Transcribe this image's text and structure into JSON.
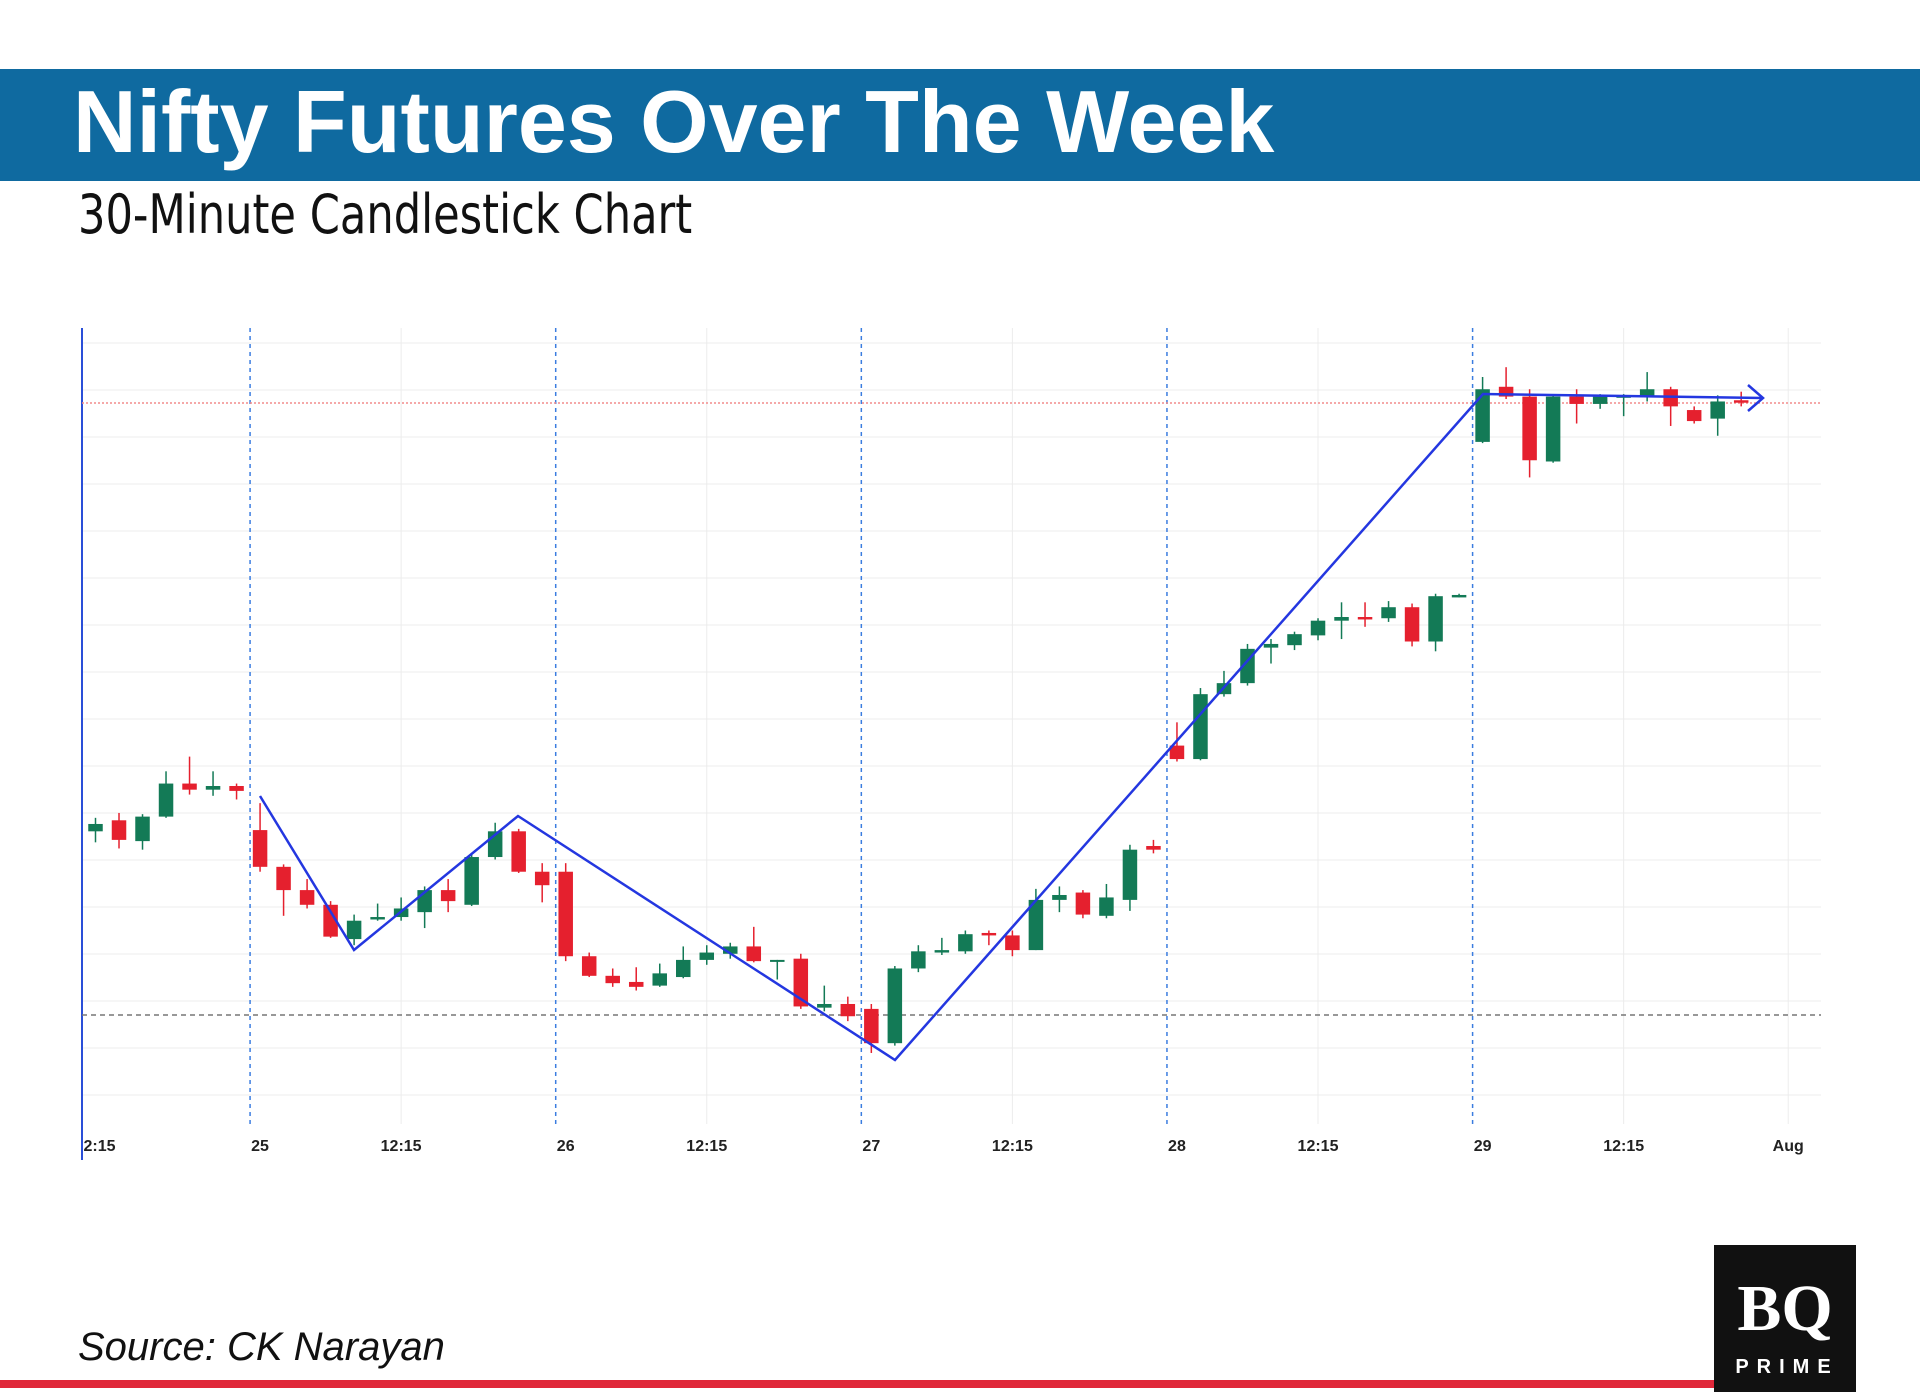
{
  "header": {
    "title": "Nifty Futures Over The Week",
    "subtitle": "30-Minute Candlestick Chart"
  },
  "chart_data": {
    "type": "candlestick",
    "categories": [
      "2:15",
      null,
      null,
      null,
      null,
      null,
      null,
      "25",
      null,
      null,
      null,
      null,
      null,
      "12:15",
      null,
      null,
      null,
      null,
      null,
      null,
      "26",
      null,
      null,
      null,
      null,
      null,
      "12:15",
      null,
      null,
      null,
      null,
      null,
      null,
      "27",
      null,
      null,
      null,
      null,
      null,
      "12:15",
      null,
      null,
      null,
      null,
      null,
      null,
      "28",
      null,
      null,
      null,
      null,
      null,
      "12:15",
      null,
      null,
      null,
      null,
      null,
      null,
      "29",
      null,
      null,
      null,
      null,
      null,
      "12:15",
      null,
      null,
      null,
      null,
      null,
      null,
      "Aug"
    ],
    "open": [
      239,
      248,
      231,
      251,
      278,
      273,
      276,
      240,
      210,
      191,
      179,
      151,
      167,
      169,
      173,
      191,
      179,
      218,
      239,
      206,
      206,
      137,
      121,
      116,
      113,
      120,
      134,
      139,
      145,
      133,
      135,
      95,
      98,
      94,
      66,
      127,
      140,
      141,
      156,
      154,
      142,
      183,
      189,
      170,
      183,
      227,
      309,
      298,
      351,
      360,
      389,
      391,
      399,
      411,
      414,
      413,
      422,
      394,
      430,
      557,
      602,
      594,
      541,
      594,
      588,
      593,
      594,
      600,
      583,
      576,
      591,
      null,
      null
    ],
    "high": [
      250,
      254,
      253,
      288,
      300,
      288,
      278,
      262,
      212,
      200,
      182,
      171,
      180,
      185,
      194,
      200,
      220,
      246,
      241,
      213,
      213,
      140,
      127,
      128,
      131,
      145,
      146,
      148,
      161,
      134,
      139,
      113,
      104,
      98,
      129,
      146,
      152,
      158,
      158,
      158,
      192,
      194,
      191,
      196,
      228,
      232,
      328,
      356,
      370,
      392,
      396,
      402,
      413,
      426,
      426,
      427,
      425,
      433,
      433,
      610,
      618,
      600,
      596,
      600,
      596,
      596,
      614,
      602,
      586,
      595,
      598,
      null,
      null
    ],
    "low": [
      230,
      225,
      224,
      250,
      269,
      268,
      265,
      206,
      170,
      176,
      152,
      146,
      166,
      166,
      160,
      173,
      178,
      216,
      205,
      181,
      133,
      120,
      112,
      109,
      112,
      119,
      130,
      135,
      132,
      118,
      94,
      92,
      84,
      58,
      64,
      124,
      138,
      139,
      146,
      137,
      142,
      173,
      168,
      168,
      174,
      221,
      296,
      297,
      349,
      358,
      376,
      387,
      395,
      396,
      406,
      410,
      390,
      386,
      430,
      556,
      592,
      528,
      540,
      572,
      584,
      578,
      590,
      570,
      572,
      562,
      586,
      null,
      null
    ],
    "close": [
      245,
      232,
      251,
      278,
      273,
      276,
      272,
      210,
      191,
      179,
      153,
      166,
      169,
      176,
      191,
      182,
      218,
      239,
      206,
      195,
      137,
      121,
      115,
      112,
      123,
      134,
      140,
      145,
      133,
      134,
      96,
      98,
      88,
      66,
      127,
      141,
      142,
      155,
      154,
      142,
      183,
      187,
      171,
      185,
      224,
      224,
      298,
      351,
      360,
      388,
      392,
      400,
      411,
      414,
      412,
      422,
      394,
      431,
      432,
      600,
      594,
      542,
      594,
      588,
      594,
      595,
      600,
      586,
      574,
      590,
      589,
      null,
      null
    ],
    "up_color": "#137a56",
    "down_color": "#e5202e",
    "ylim": [
      0,
      650
    ]
  },
  "source": "Source: CK Narayan",
  "logo": {
    "name": "BQ",
    "tag": "PRIME"
  }
}
